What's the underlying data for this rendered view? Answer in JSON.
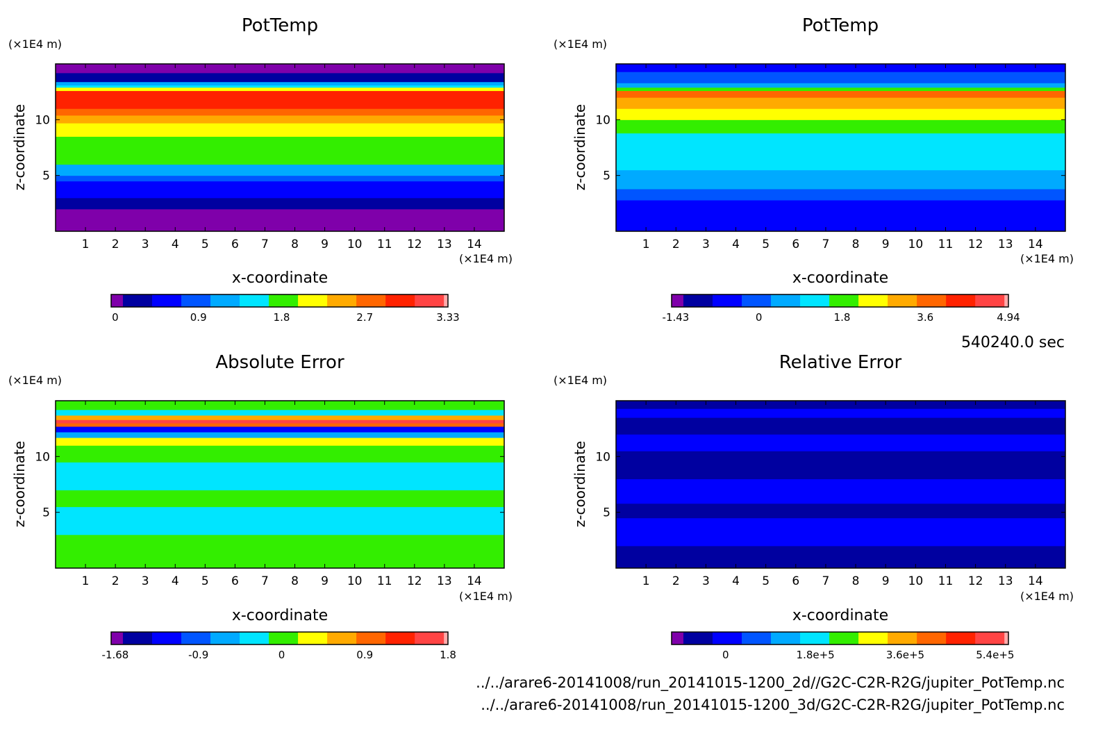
{
  "figure": {
    "time_label": "540240.0 sec",
    "files": [
      "../../arare6-20141008/run_20141015-1200_2d//G2C-C2R-R2G/jupiter_PotTemp.nc",
      "../../arare6-20141008/run_20141015-1200_3d/G2C-C2R-R2G/jupiter_PotTemp.nc"
    ]
  },
  "chart_data": [
    {
      "type": "heatmap",
      "title": "PotTemp",
      "xlabel": "x-coordinate",
      "ylabel": "z-coordinate",
      "x_unit": "(×1E4 m)",
      "y_unit": "(×1E4 m)",
      "xlim": [
        0,
        15
      ],
      "ylim": [
        0,
        15
      ],
      "x_ticks": [
        "1",
        "2",
        "3",
        "4",
        "5",
        "6",
        "7",
        "8",
        "9",
        "10",
        "11",
        "12",
        "13",
        "14"
      ],
      "y_ticks": [
        "5",
        "10"
      ],
      "bands": [
        {
          "z0": 0,
          "z1": 2.0,
          "level": 0
        },
        {
          "z0": 2.0,
          "z1": 3.0,
          "level": 1
        },
        {
          "z0": 3.0,
          "z1": 4.5,
          "level": 2
        },
        {
          "z0": 4.5,
          "z1": 5.0,
          "level": 3
        },
        {
          "z0": 5.0,
          "z1": 6.0,
          "level": 4
        },
        {
          "z0": 6.0,
          "z1": 8.5,
          "level": 6
        },
        {
          "z0": 8.5,
          "z1": 9.7,
          "level": 7
        },
        {
          "z0": 9.7,
          "z1": 10.4,
          "level": 8
        },
        {
          "z0": 10.4,
          "z1": 11.0,
          "level": 9
        },
        {
          "z0": 11.0,
          "z1": 12.6,
          "level": 10
        },
        {
          "z0": 12.6,
          "z1": 12.9,
          "level": 7
        },
        {
          "z0": 12.9,
          "z1": 13.1,
          "level": 5
        },
        {
          "z0": 13.1,
          "z1": 13.4,
          "level": 4
        },
        {
          "z0": 13.4,
          "z1": 14.2,
          "level": 1
        },
        {
          "z0": 14.2,
          "z1": 15,
          "level": 0
        }
      ],
      "colorbar": {
        "ticks": [
          "0",
          "0.9",
          "1.8",
          "2.7",
          "3.33"
        ]
      }
    },
    {
      "type": "heatmap",
      "title": "PotTemp",
      "xlabel": "x-coordinate",
      "ylabel": "z-coordinate",
      "x_unit": "(×1E4 m)",
      "y_unit": "(×1E4 m)",
      "xlim": [
        0,
        15
      ],
      "ylim": [
        0,
        15
      ],
      "x_ticks": [
        "1",
        "2",
        "3",
        "4",
        "5",
        "6",
        "7",
        "8",
        "9",
        "10",
        "11",
        "12",
        "13",
        "14"
      ],
      "y_ticks": [
        "5",
        "10"
      ],
      "bands": [
        {
          "z0": 0,
          "z1": 2.8,
          "level": 2
        },
        {
          "z0": 2.8,
          "z1": 3.8,
          "level": 3
        },
        {
          "z0": 3.8,
          "z1": 5.5,
          "level": 4
        },
        {
          "z0": 5.5,
          "z1": 8.8,
          "level": 5
        },
        {
          "z0": 8.8,
          "z1": 10.0,
          "level": 6
        },
        {
          "z0": 10.0,
          "z1": 11.0,
          "level": 7
        },
        {
          "z0": 11.0,
          "z1": 12.0,
          "level": 8
        },
        {
          "z0": 12.0,
          "z1": 12.6,
          "level": 9
        },
        {
          "z0": 12.6,
          "z1": 12.9,
          "level": 6
        },
        {
          "z0": 12.9,
          "z1": 13.3,
          "level": 4
        },
        {
          "z0": 13.3,
          "z1": 14.3,
          "level": 3
        },
        {
          "z0": 14.3,
          "z1": 15,
          "level": 2
        }
      ],
      "colorbar": {
        "ticks": [
          "-1.43",
          "0",
          "1.8",
          "3.6",
          "4.94"
        ]
      }
    },
    {
      "type": "heatmap",
      "title": "Absolute Error",
      "xlabel": "x-coordinate",
      "ylabel": "z-coordinate",
      "x_unit": "(×1E4 m)",
      "y_unit": "(×1E4 m)",
      "xlim": [
        0,
        15
      ],
      "ylim": [
        0,
        15
      ],
      "x_ticks": [
        "1",
        "2",
        "3",
        "4",
        "5",
        "6",
        "7",
        "8",
        "9",
        "10",
        "11",
        "12",
        "13",
        "14"
      ],
      "y_ticks": [
        "5",
        "10"
      ],
      "bands": [
        {
          "z0": 0,
          "z1": 3.0,
          "level": 6
        },
        {
          "z0": 3.0,
          "z1": 5.5,
          "level": 5
        },
        {
          "z0": 5.5,
          "z1": 7.0,
          "level": 6
        },
        {
          "z0": 7.0,
          "z1": 9.5,
          "level": 5
        },
        {
          "z0": 9.5,
          "z1": 11.0,
          "level": 6
        },
        {
          "z0": 11.0,
          "z1": 11.7,
          "level": 7
        },
        {
          "z0": 11.7,
          "z1": 12.2,
          "level": 4
        },
        {
          "z0": 12.2,
          "z1": 12.7,
          "level": 2
        },
        {
          "z0": 12.7,
          "z1": 13.0,
          "level": 9
        },
        {
          "z0": 13.0,
          "z1": 13.3,
          "level": 11
        },
        {
          "z0": 13.3,
          "z1": 13.7,
          "level": 8
        },
        {
          "z0": 13.7,
          "z1": 14.2,
          "level": 5
        },
        {
          "z0": 14.2,
          "z1": 15,
          "level": 6
        }
      ],
      "colorbar": {
        "ticks": [
          "-1.68",
          "-0.9",
          "0",
          "0.9",
          "1.8"
        ]
      }
    },
    {
      "type": "heatmap",
      "title": "Relative Error",
      "xlabel": "x-coordinate",
      "ylabel": "z-coordinate",
      "x_unit": "(×1E4 m)",
      "y_unit": "(×1E4 m)",
      "xlim": [
        0,
        15
      ],
      "ylim": [
        0,
        15
      ],
      "x_ticks": [
        "1",
        "2",
        "3",
        "4",
        "5",
        "6",
        "7",
        "8",
        "9",
        "10",
        "11",
        "12",
        "13",
        "14"
      ],
      "y_ticks": [
        "5",
        "10"
      ],
      "bands": [
        {
          "z0": 0,
          "z1": 2.0,
          "level": 1
        },
        {
          "z0": 2.0,
          "z1": 4.5,
          "level": 2
        },
        {
          "z0": 4.5,
          "z1": 5.8,
          "level": 1
        },
        {
          "z0": 5.8,
          "z1": 8.0,
          "level": 2
        },
        {
          "z0": 8.0,
          "z1": 10.5,
          "level": 1
        },
        {
          "z0": 10.5,
          "z1": 12.0,
          "level": 2
        },
        {
          "z0": 12.0,
          "z1": 13.5,
          "level": 1
        },
        {
          "z0": 13.5,
          "z1": 14.3,
          "level": 2
        },
        {
          "z0": 14.3,
          "z1": 15,
          "level": 1
        }
      ],
      "colorbar": {
        "ticks": [
          "0",
          "1.8e+5",
          "3.6e+5",
          "5.4e+5"
        ]
      }
    }
  ],
  "colormap": [
    "#7f00aa",
    "#0000a0",
    "#0000ff",
    "#0055ff",
    "#00aaff",
    "#00e5ff",
    "#33ee00",
    "#ffff00",
    "#ffaa00",
    "#ff6600",
    "#ff2200",
    "#ff4444",
    "#ffaaaa"
  ]
}
